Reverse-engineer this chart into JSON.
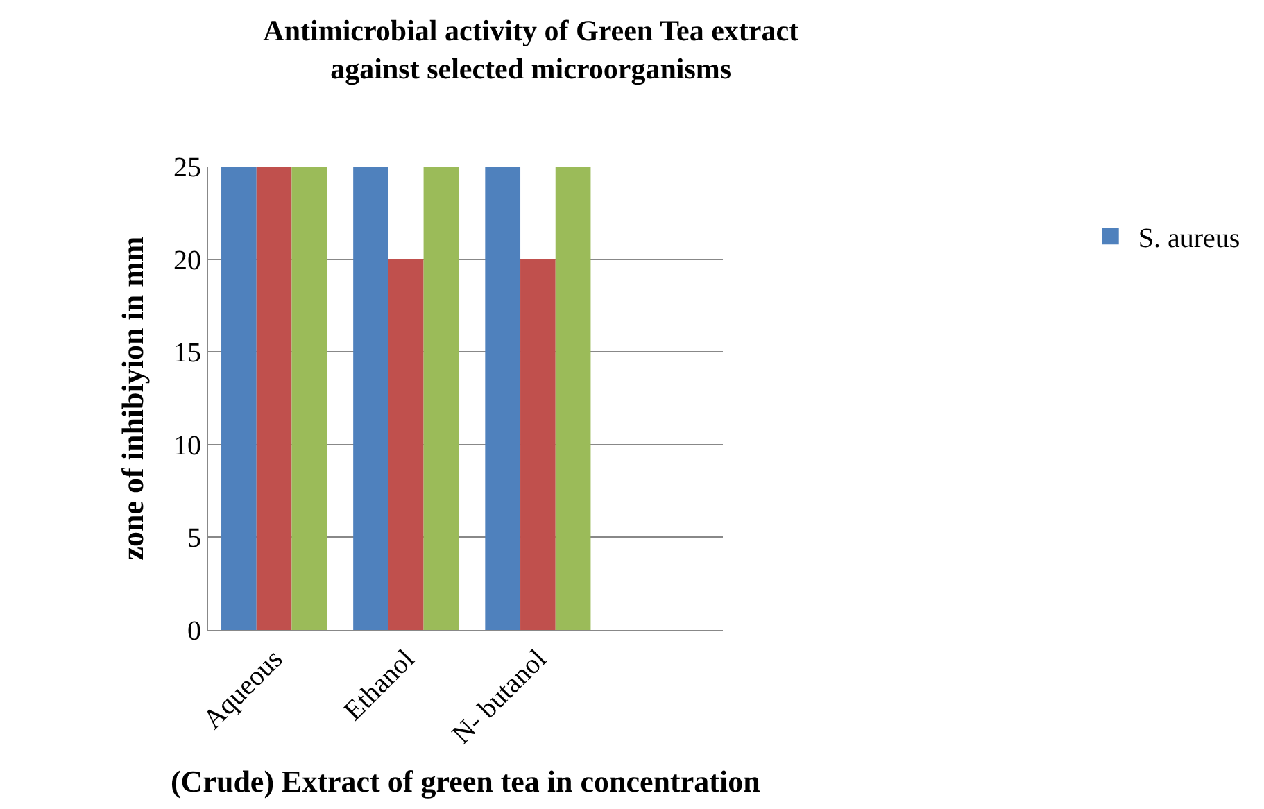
{
  "chart_data": {
    "type": "bar",
    "title": "Antimicrobial activity of Green Tea extract\nagainst selected microorganisms",
    "xlabel": "(Crude) Extract of green tea in concentration",
    "ylabel": "zone of inhibiyion in mm",
    "categories": [
      "Aqueous",
      "Ethanol",
      "N- butanol"
    ],
    "series": [
      {
        "name": "S. aureus",
        "color": "#4f81bd",
        "values": [
          25,
          25,
          25
        ]
      },
      {
        "color": "#c0504d",
        "values": [
          25,
          20,
          20
        ]
      },
      {
        "color": "#9bbb59",
        "values": [
          25,
          25,
          25
        ]
      }
    ],
    "ylim": [
      0,
      25
    ],
    "yticks": [
      0,
      5,
      10,
      15,
      20,
      25
    ],
    "grid": "y",
    "legend": "right"
  }
}
